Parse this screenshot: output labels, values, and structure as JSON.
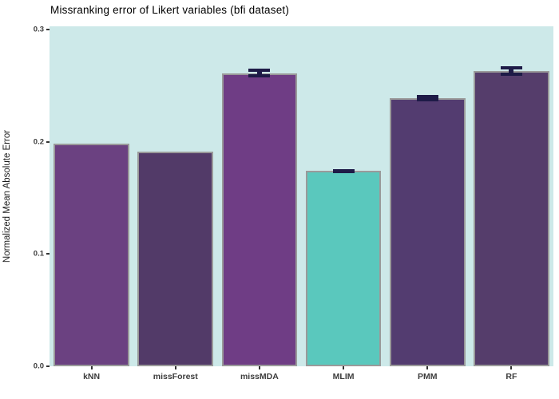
{
  "chart_data": {
    "type": "bar",
    "title": "Missranking error of Likert variables (bfi dataset)",
    "xlabel": "",
    "ylabel": "Normalized Mean Absolute Error",
    "categories": [
      "kNN",
      "missForest",
      "missMDA",
      "MLIM",
      "PMM",
      "RF"
    ],
    "values": [
      0.198,
      0.191,
      0.261,
      0.174,
      0.239,
      0.263
    ],
    "error_margins": [
      null,
      null,
      0.004,
      0.0015,
      0.003,
      0.0045
    ],
    "bar_colors": [
      "#6b4181",
      "#523a68",
      "#6f3d85",
      "#5ac8bd",
      "#533c70",
      "#553d6b"
    ],
    "ylim": [
      0,
      0.3
    ],
    "y_tick_values": [
      0,
      0.1,
      0.2,
      0.3
    ],
    "y_tick_labels": [
      "0.0",
      "0.1",
      "0.2",
      "0.3"
    ],
    "grid": false,
    "legend": "none",
    "plot_bg_color": "#cde9e9",
    "error_bar_color": "#1e1b47",
    "bar_border_color": "#9a9a9a",
    "bar_width_fraction": 0.9
  }
}
